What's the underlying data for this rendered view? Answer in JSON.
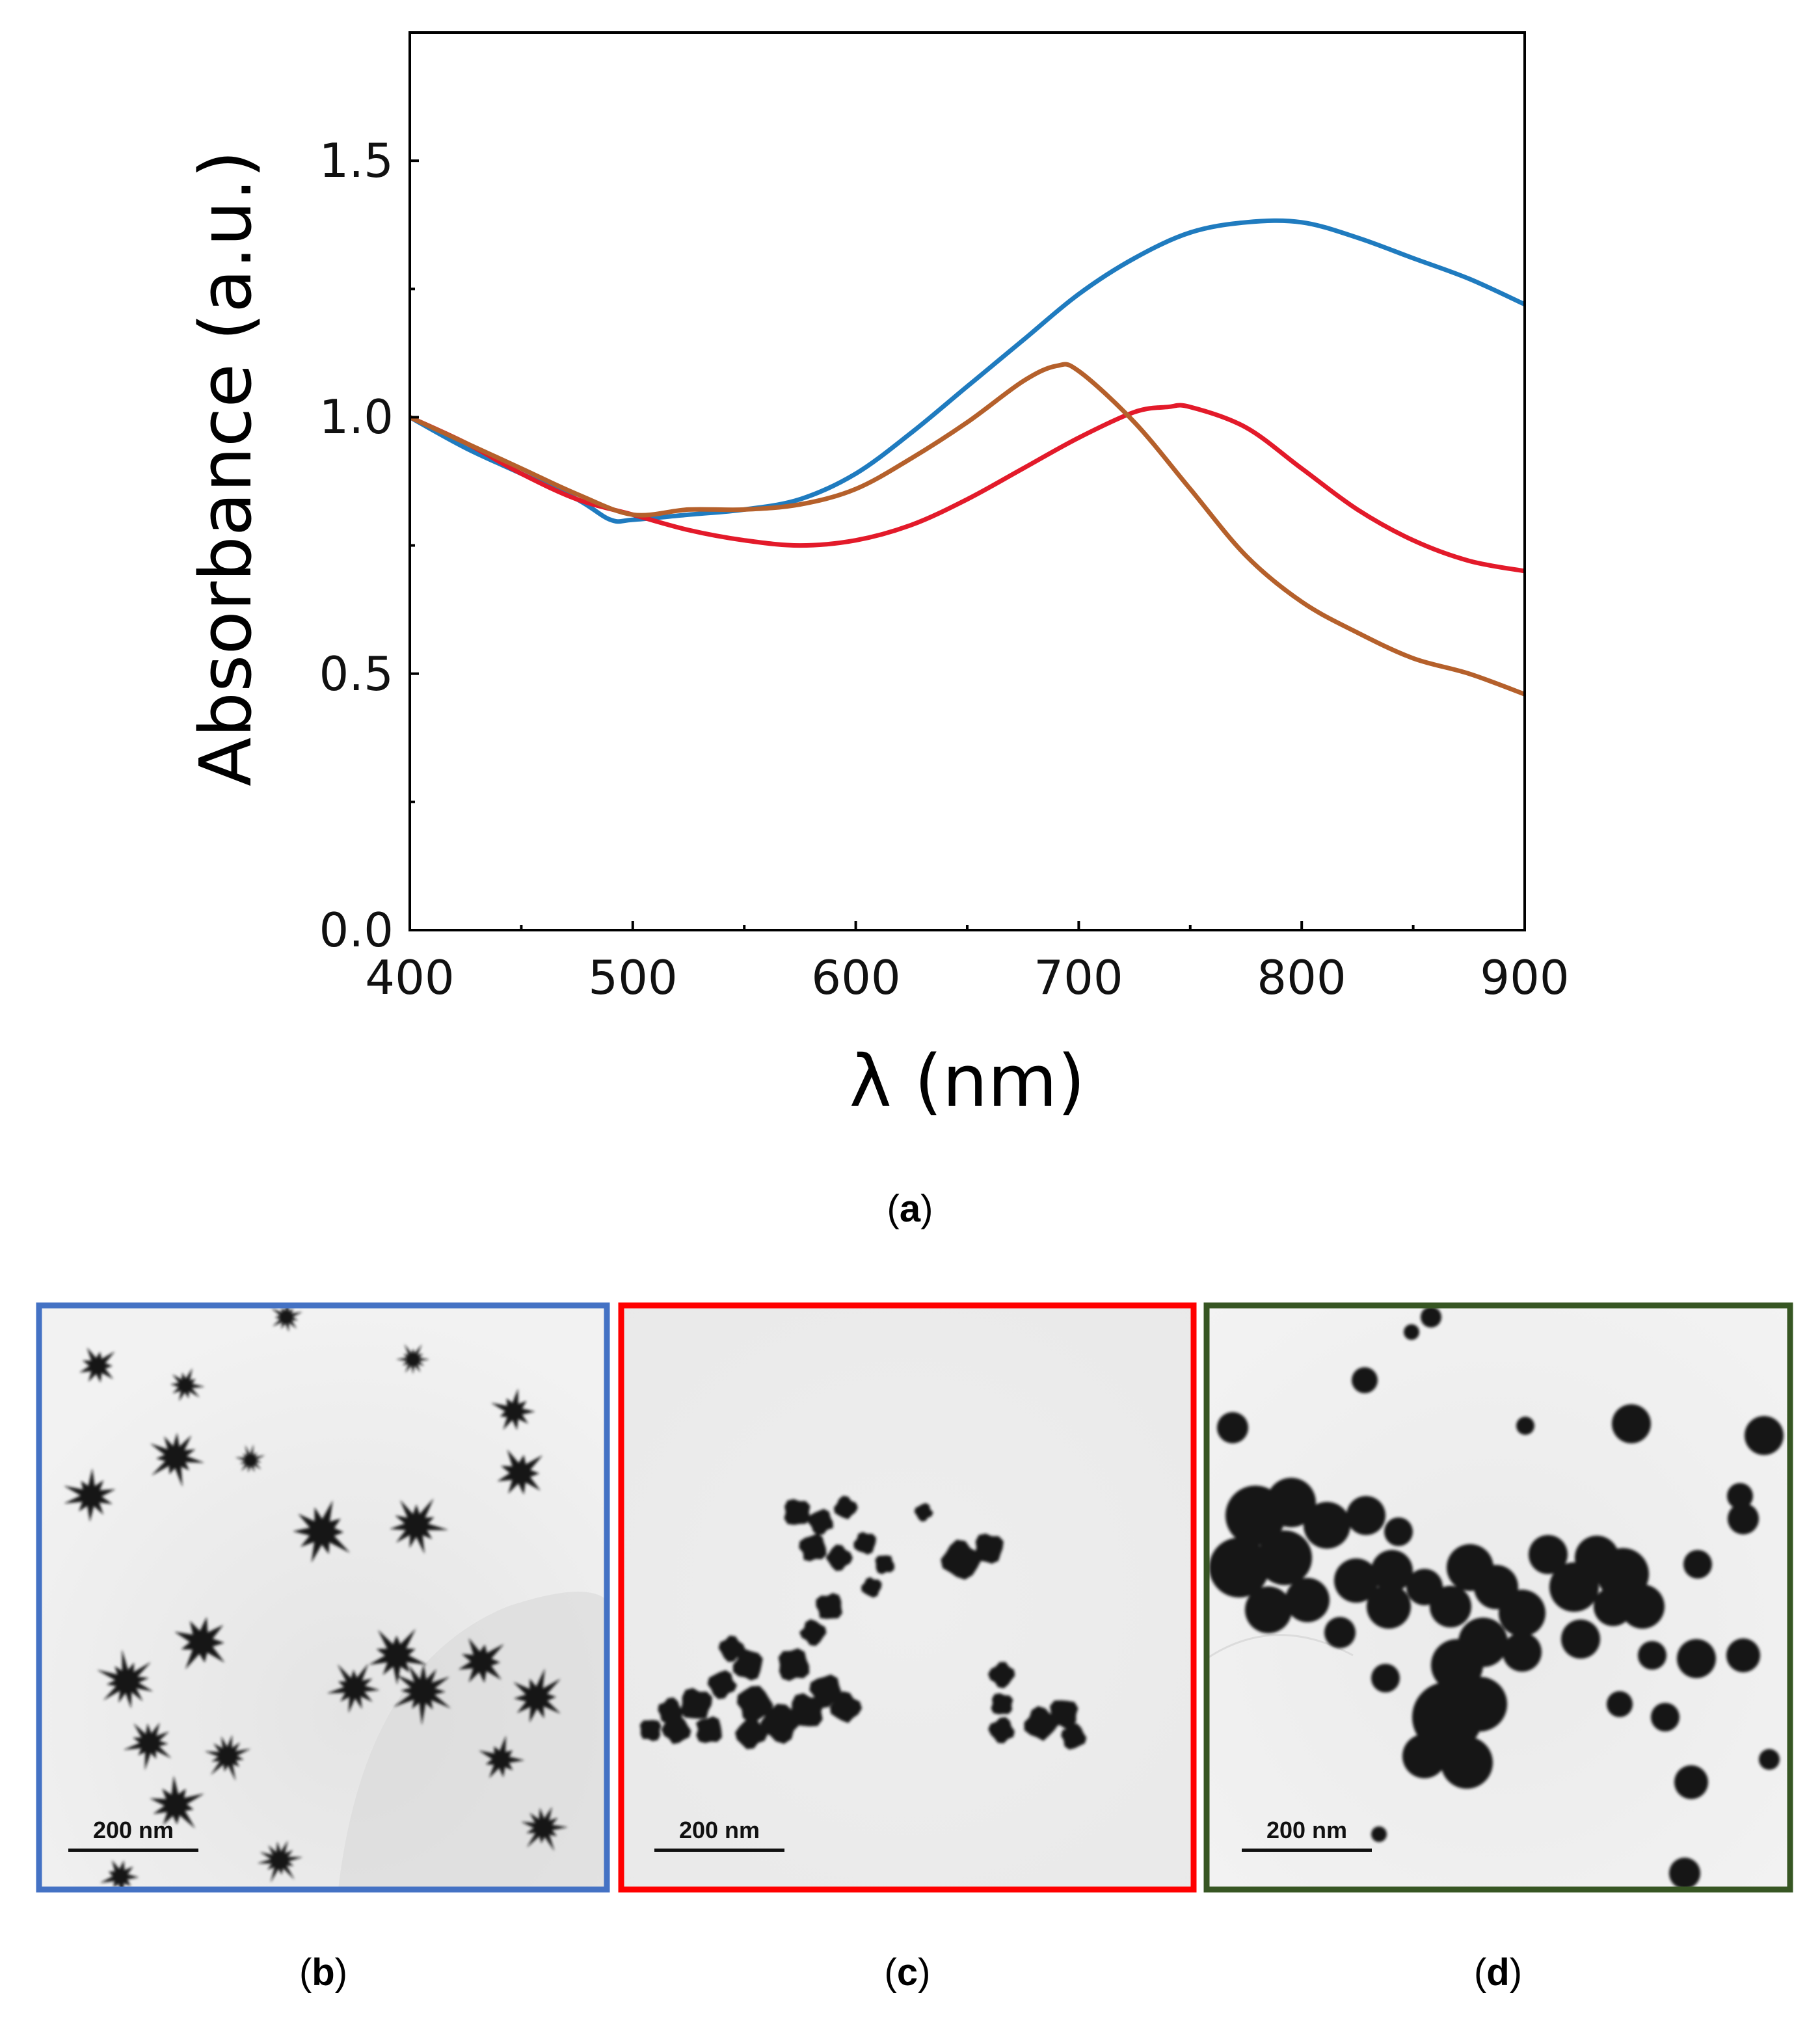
{
  "chart_data": {
    "type": "line",
    "title": "",
    "xlabel": "λ (nm)",
    "ylabel": "Absorbance (a.u.)",
    "xlim": [
      400,
      900
    ],
    "ylim": [
      0.0,
      1.75
    ],
    "x_ticks": [
      "400",
      "500",
      "600",
      "700",
      "800",
      "900"
    ],
    "y_ticks": [
      "0.0",
      "0.5",
      "1.0",
      "1.5"
    ],
    "grid": false,
    "legend": "none",
    "series": [
      {
        "name": "blue",
        "color": "#1f7bbf",
        "x": [
          400,
          425,
          450,
          475,
          490,
          500,
          525,
          550,
          575,
          600,
          625,
          650,
          675,
          700,
          725,
          750,
          775,
          800,
          825,
          850,
          875,
          900
        ],
        "y": [
          1.0,
          0.94,
          0.89,
          0.84,
          0.8,
          0.8,
          0.81,
          0.82,
          0.84,
          0.89,
          0.97,
          1.06,
          1.15,
          1.24,
          1.31,
          1.36,
          1.38,
          1.38,
          1.35,
          1.31,
          1.27,
          1.22
        ]
      },
      {
        "name": "red",
        "color": "#e31a2a",
        "x": [
          400,
          425,
          450,
          475,
          500,
          525,
          550,
          575,
          600,
          625,
          650,
          675,
          700,
          725,
          740,
          750,
          775,
          800,
          825,
          850,
          875,
          900
        ],
        "y": [
          1.0,
          0.95,
          0.89,
          0.84,
          0.81,
          0.78,
          0.76,
          0.75,
          0.76,
          0.79,
          0.84,
          0.9,
          0.96,
          1.01,
          1.02,
          1.02,
          0.98,
          0.9,
          0.82,
          0.76,
          0.72,
          0.7
        ]
      },
      {
        "name": "brown",
        "color": "#b5602b",
        "x": [
          400,
          425,
          450,
          475,
          500,
          525,
          550,
          575,
          600,
          625,
          650,
          675,
          690,
          700,
          725,
          750,
          775,
          800,
          825,
          850,
          875,
          900
        ],
        "y": [
          1.0,
          0.95,
          0.9,
          0.85,
          0.81,
          0.82,
          0.82,
          0.83,
          0.86,
          0.92,
          0.99,
          1.07,
          1.1,
          1.09,
          0.99,
          0.86,
          0.73,
          0.64,
          0.58,
          0.53,
          0.5,
          0.46
        ]
      }
    ]
  },
  "panel_labels": {
    "a": "a",
    "b": "b",
    "c": "c",
    "d": "d"
  },
  "tem_panels": [
    {
      "id": "b",
      "frame_color": "#4472c4",
      "scale_bar": "200 nm",
      "morphology": "star-shaped nanoparticles"
    },
    {
      "id": "c",
      "frame_color": "#ff0000",
      "scale_bar": "200 nm",
      "morphology": "aggregated irregular nanoparticles"
    },
    {
      "id": "d",
      "frame_color": "#375623",
      "scale_bar": "200 nm",
      "morphology": "spherical nanoparticles"
    }
  ]
}
